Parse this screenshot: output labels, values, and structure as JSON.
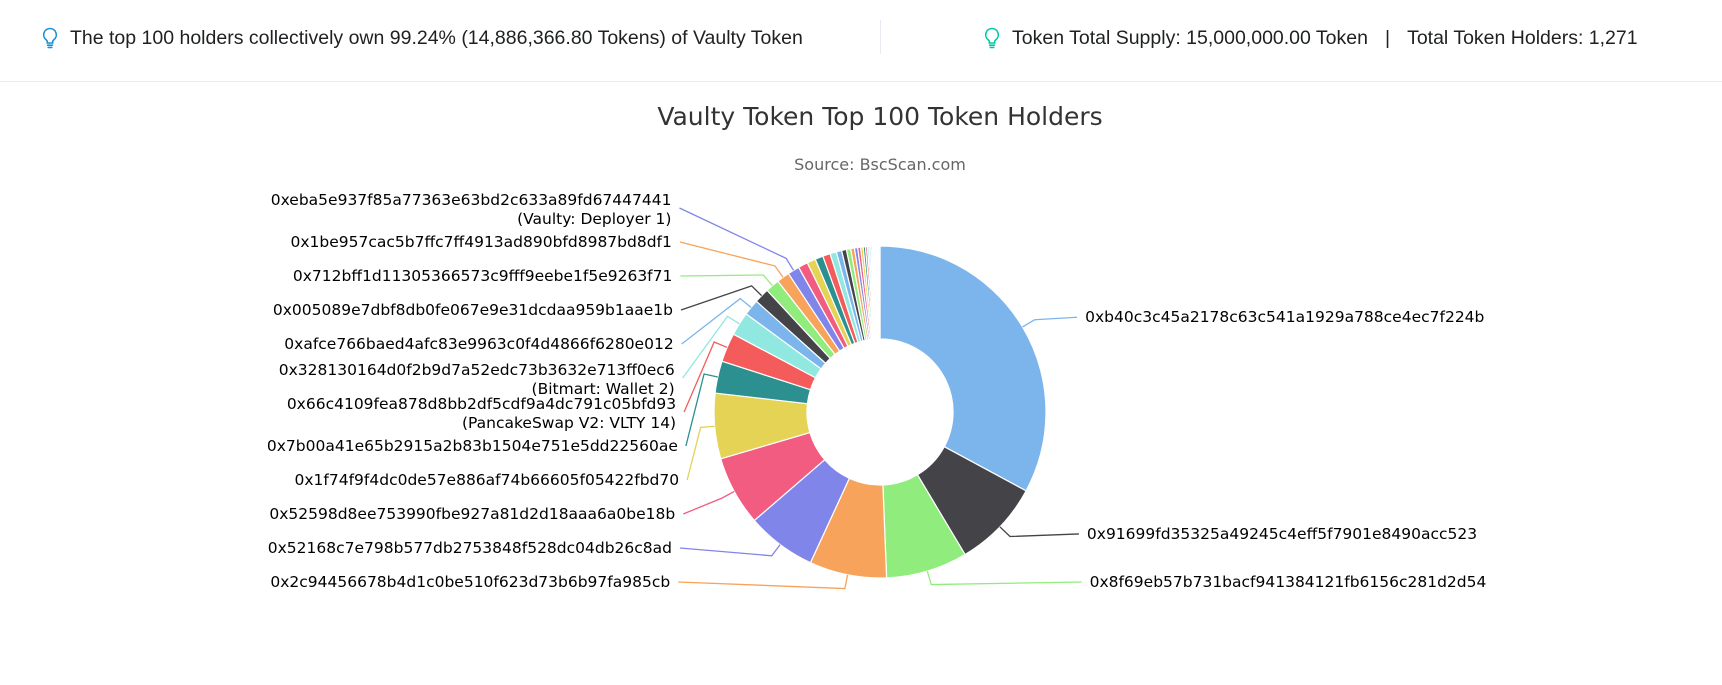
{
  "summary": {
    "left": "The top 100 holders collectively own 99.24% (14,886,366.80 Tokens) of Vaulty Token",
    "supply": "Token Total Supply: 15,000,000.00 Token",
    "separator": "|",
    "holders": "Total Token Holders: 1,271",
    "icon": "lightbulb-icon",
    "icon_color": "#00c9a7"
  },
  "chart_data": {
    "type": "pie",
    "title": "Vaulty Token Top 100 Token Holders",
    "subtitle": "Source: BscScan.com",
    "inner_radius_ratio": 0.44,
    "slices": [
      {
        "name": "0xb40c3c45a2178c63c541a1929a788ce4ec7f224b",
        "value": 31.5,
        "color": "#7cb5ec"
      },
      {
        "name": "0x91699fd35325a49245c4eff5f7901e8490acc523",
        "value": 8.2,
        "color": "#434348"
      },
      {
        "name": "0x8f69eb57b731bacf941384121fb6156c281d2d54",
        "value": 7.6,
        "color": "#90ed7d"
      },
      {
        "name": "0x2c94456678b4d1c0be510f623d73b6b97fa985cb",
        "value": 7.2,
        "color": "#f7a35c"
      },
      {
        "name": "0x52168c7e798b577db2753848f528dc04db26c8ad",
        "value": 6.5,
        "color": "#8085e9"
      },
      {
        "name": "0x52598d8ee753990fbe927a81d2d18aaa6a0be18b",
        "value": 6.5,
        "color": "#f15c80"
      },
      {
        "name": "0x1f74f9f4dc0de57e886af74b66605f05422fbd70",
        "value": 6.1,
        "color": "#e4d354"
      },
      {
        "name": "0x7b00a41e65b2915a2b83b1504e751e5dd22560ae",
        "value": 3.0,
        "color": "#2b908f"
      },
      {
        "name": "0x66c4109fea878d8bb2df5cdf9a4dc791c05bfd93 (PancakeSwap V2: VLTY 14)",
        "value": 2.7,
        "color": "#f45b5b"
      },
      {
        "name": "0x328130164d0f2b9d7a52edc73b3632e713ff0ec6 (Bitmart: Wallet 2)",
        "value": 2.2,
        "color": "#91e8e1"
      },
      {
        "name": "0xafce766baed4afc83e9963c0f4d4866f6280e012",
        "value": 1.5,
        "color": "#7cb5ec"
      },
      {
        "name": "0x005089e7dbf8db0fe067e9e31dcdaa959b1aae1b",
        "value": 1.4,
        "color": "#434348"
      },
      {
        "name": "0x712bff1d11305366573c9fff9eebe1f5e9263f71",
        "value": 1.3,
        "color": "#90ed7d"
      },
      {
        "name": "0x1be957cac5b7ffc7ff4913ad890bfd8987bd8df1",
        "value": 1.2,
        "color": "#f7a35c"
      },
      {
        "name": "0xeba5e937f85a77363e63bd2c633a89fd67447441 (Vaulty: Deployer 1)",
        "value": 1.1,
        "color": "#8085e9"
      },
      {
        "name": "",
        "value": 0.9,
        "color": "#f15c80"
      },
      {
        "name": "",
        "value": 0.8,
        "color": "#e4d354"
      },
      {
        "name": "",
        "value": 0.75,
        "color": "#2b908f"
      },
      {
        "name": "",
        "value": 0.7,
        "color": "#f45b5b"
      },
      {
        "name": "",
        "value": 0.6,
        "color": "#91e8e1"
      },
      {
        "name": "",
        "value": 0.5,
        "color": "#7cb5ec"
      },
      {
        "name": "",
        "value": 0.45,
        "color": "#434348"
      },
      {
        "name": "",
        "value": 0.4,
        "color": "#90ed7d"
      },
      {
        "name": "",
        "value": 0.35,
        "color": "#f7a35c"
      },
      {
        "name": "",
        "value": 0.3,
        "color": "#8085e9"
      },
      {
        "name": "",
        "value": 0.27,
        "color": "#f15c80"
      },
      {
        "name": "",
        "value": 0.24,
        "color": "#e4d354"
      },
      {
        "name": "",
        "value": 0.21,
        "color": "#2b908f"
      },
      {
        "name": "",
        "value": 0.18,
        "color": "#f45b5b"
      },
      {
        "name": "",
        "value": 0.16,
        "color": "#91e8e1"
      },
      {
        "name": "",
        "value": 0.14,
        "color": "#7cb5ec"
      },
      {
        "name": "",
        "value": 0.12,
        "color": "#434348"
      },
      {
        "name": "",
        "value": 0.1,
        "color": "#90ed7d"
      },
      {
        "name": "",
        "value": 0.09,
        "color": "#f7a35c"
      },
      {
        "name": "",
        "value": 0.08,
        "color": "#8085e9"
      },
      {
        "name": "",
        "value": 0.07,
        "color": "#f15c80"
      },
      {
        "name": "",
        "value": 0.06,
        "color": "#e4d354"
      },
      {
        "name": "",
        "value": 0.05,
        "color": "#2b908f"
      },
      {
        "name": "",
        "value": 0.05,
        "color": "#f45b5b"
      },
      {
        "name": "",
        "value": 0.04,
        "color": "#91e8e1"
      },
      {
        "name": "",
        "value": 0.04,
        "color": "#7cb5ec"
      },
      {
        "name": "",
        "value": 0.03,
        "color": "#434348"
      },
      {
        "name": "",
        "value": 0.03,
        "color": "#90ed7d"
      },
      {
        "name": "",
        "value": 0.02,
        "color": "#f7a35c"
      },
      {
        "name": "",
        "value": 0.02,
        "color": "#8085e9"
      },
      {
        "name": "",
        "value": 0.02,
        "color": "#f15c80"
      },
      {
        "name": "",
        "value": 0.01,
        "color": "#e4d354"
      },
      {
        "name": "",
        "value": 0.01,
        "color": "#2b908f"
      },
      {
        "name": "",
        "value": 0.01,
        "color": "#f45b5b"
      },
      {
        "name": "",
        "value": 0.01,
        "color": "#91e8e1"
      }
    ]
  }
}
